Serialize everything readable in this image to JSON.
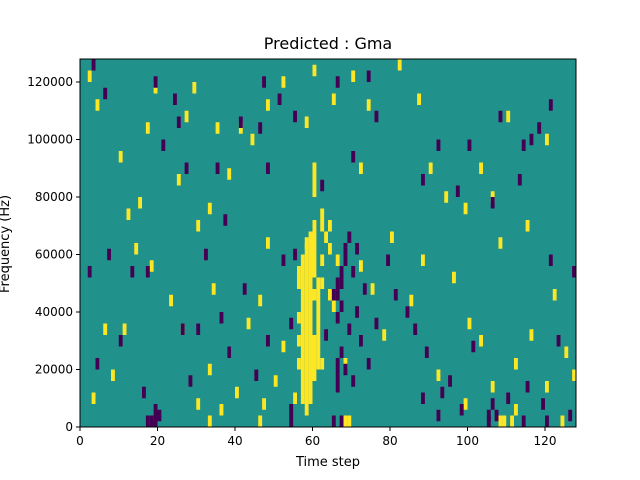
{
  "chart_data": {
    "type": "heatmap",
    "title": "Predicted : Gma",
    "xlabel": "Time step",
    "ylabel": "Frequency (Hz)",
    "xlim": [
      0,
      128
    ],
    "ylim": [
      0,
      128000
    ],
    "x_ticks": [
      0,
      20,
      40,
      60,
      80,
      100,
      120
    ],
    "y_ticks": [
      0,
      20000,
      40000,
      60000,
      80000,
      100000,
      120000
    ],
    "x_tick_labels": [
      "0",
      "20",
      "40",
      "60",
      "80",
      "100",
      "120"
    ],
    "y_tick_labels": [
      "0",
      "20000",
      "40000",
      "60000",
      "80000",
      "100000",
      "120000"
    ],
    "grid": false,
    "value_range": [
      -1,
      1
    ],
    "colormap": {
      "low": "#440154",
      "mid": "#21918c",
      "high": "#fde725"
    },
    "cell_size": [
      1,
      4000
    ],
    "cells_high": [
      [
        2,
        120000
      ],
      [
        4,
        110000
      ],
      [
        10,
        92000
      ],
      [
        12,
        72000
      ],
      [
        15,
        76000
      ],
      [
        17,
        102000
      ],
      [
        19,
        116000
      ],
      [
        25,
        84000
      ],
      [
        27,
        106000
      ],
      [
        29,
        116000
      ],
      [
        30,
        68000
      ],
      [
        33,
        74000
      ],
      [
        35,
        102000
      ],
      [
        38,
        86000
      ],
      [
        41,
        102000
      ],
      [
        44,
        98000
      ],
      [
        48,
        110000
      ],
      [
        52,
        118000
      ],
      [
        58,
        104000
      ],
      [
        60,
        122000
      ],
      [
        65,
        112000
      ],
      [
        70,
        120000
      ],
      [
        72,
        88000
      ],
      [
        74,
        110000
      ],
      [
        82,
        124000
      ],
      [
        87,
        112000
      ],
      [
        90,
        88000
      ],
      [
        94,
        78000
      ],
      [
        99,
        74000
      ],
      [
        103,
        88000
      ],
      [
        106,
        78000
      ],
      [
        110,
        106000
      ],
      [
        115,
        68000
      ],
      [
        120,
        98000
      ],
      [
        3,
        8000
      ],
      [
        4,
        20000
      ],
      [
        6,
        32000
      ],
      [
        8,
        16000
      ],
      [
        11,
        32000
      ],
      [
        14,
        60000
      ],
      [
        18,
        54000
      ],
      [
        23,
        42000
      ],
      [
        26,
        32000
      ],
      [
        30,
        6000
      ],
      [
        33,
        18000
      ],
      [
        34,
        46000
      ],
      [
        36,
        4000
      ],
      [
        38,
        24000
      ],
      [
        40,
        10000
      ],
      [
        43,
        34000
      ],
      [
        46,
        42000
      ],
      [
        48,
        62000
      ],
      [
        50,
        14000
      ],
      [
        52,
        26000
      ],
      [
        55,
        8000
      ],
      [
        58,
        62000
      ],
      [
        62,
        20000
      ],
      [
        65,
        40000
      ],
      [
        68,
        20000
      ],
      [
        72,
        54000
      ],
      [
        75,
        46000
      ],
      [
        78,
        30000
      ],
      [
        80,
        64000
      ],
      [
        85,
        42000
      ],
      [
        88,
        56000
      ],
      [
        92,
        16000
      ],
      [
        96,
        50000
      ],
      [
        100,
        34000
      ],
      [
        103,
        28000
      ],
      [
        106,
        12000
      ],
      [
        108,
        62000
      ],
      [
        112,
        20000
      ],
      [
        116,
        30000
      ],
      [
        120,
        12000
      ],
      [
        122,
        44000
      ],
      [
        125,
        24000
      ],
      [
        127,
        16000
      ],
      [
        60,
        64000
      ],
      [
        60,
        60000
      ],
      [
        60,
        56000
      ],
      [
        60,
        52000
      ],
      [
        61,
        48000
      ],
      [
        61,
        44000
      ],
      [
        61,
        40000
      ],
      [
        61,
        36000
      ],
      [
        61,
        32000
      ],
      [
        62,
        48000
      ],
      [
        62,
        56000
      ],
      [
        63,
        64000
      ],
      [
        64,
        44000
      ],
      [
        64,
        60000
      ],
      [
        66,
        56000
      ],
      [
        57,
        8000
      ],
      [
        57,
        12000
      ],
      [
        57,
        16000
      ],
      [
        57,
        20000
      ],
      [
        57,
        24000
      ],
      [
        57,
        28000
      ],
      [
        57,
        32000
      ],
      [
        57,
        36000
      ],
      [
        57,
        40000
      ],
      [
        57,
        44000
      ],
      [
        57,
        48000
      ],
      [
        57,
        52000
      ],
      [
        57,
        56000
      ],
      [
        58,
        4000
      ],
      [
        58,
        8000
      ],
      [
        58,
        12000
      ],
      [
        58,
        16000
      ],
      [
        58,
        20000
      ],
      [
        58,
        24000
      ],
      [
        58,
        28000
      ],
      [
        58,
        32000
      ],
      [
        58,
        36000
      ],
      [
        58,
        40000
      ],
      [
        58,
        44000
      ],
      [
        58,
        48000
      ],
      [
        58,
        52000
      ],
      [
        58,
        56000
      ],
      [
        58,
        60000
      ],
      [
        59,
        8000
      ],
      [
        59,
        12000
      ],
      [
        59,
        16000
      ],
      [
        59,
        20000
      ],
      [
        59,
        24000
      ],
      [
        59,
        28000
      ],
      [
        59,
        32000
      ],
      [
        59,
        36000
      ],
      [
        59,
        40000
      ],
      [
        59,
        44000
      ],
      [
        59,
        48000
      ],
      [
        59,
        52000
      ],
      [
        59,
        56000
      ],
      [
        59,
        60000
      ],
      [
        59,
        64000
      ],
      [
        60,
        16000
      ],
      [
        60,
        20000
      ],
      [
        60,
        24000
      ],
      [
        60,
        28000
      ],
      [
        60,
        44000
      ],
      [
        60,
        68000
      ],
      [
        61,
        20000
      ],
      [
        61,
        24000
      ],
      [
        61,
        28000
      ],
      [
        56,
        48000
      ],
      [
        56,
        52000
      ],
      [
        56,
        36000
      ],
      [
        56,
        28000
      ],
      [
        56,
        20000
      ],
      [
        60,
        84000
      ],
      [
        60,
        80000
      ],
      [
        60,
        88000
      ],
      [
        62,
        72000
      ],
      [
        62,
        68000
      ],
      [
        64,
        68000
      ],
      [
        68,
        0
      ],
      [
        69,
        0
      ],
      [
        108,
        0
      ],
      [
        109,
        0
      ],
      [
        111,
        0
      ],
      [
        112,
        4000
      ],
      [
        124,
        0
      ],
      [
        99,
        6000
      ],
      [
        46,
        0
      ],
      [
        47,
        6000
      ],
      [
        33,
        0
      ]
    ],
    "cells_low": [
      [
        3,
        124000
      ],
      [
        6,
        114000
      ],
      [
        19,
        118000
      ],
      [
        24,
        112000
      ],
      [
        25,
        104000
      ],
      [
        21,
        96000
      ],
      [
        27,
        88000
      ],
      [
        35,
        88000
      ],
      [
        37,
        70000
      ],
      [
        41,
        104000
      ],
      [
        46,
        102000
      ],
      [
        47,
        118000
      ],
      [
        48,
        88000
      ],
      [
        51,
        112000
      ],
      [
        55,
        106000
      ],
      [
        62,
        82000
      ],
      [
        66,
        118000
      ],
      [
        70,
        92000
      ],
      [
        74,
        120000
      ],
      [
        76,
        106000
      ],
      [
        88,
        84000
      ],
      [
        92,
        96000
      ],
      [
        97,
        80000
      ],
      [
        100,
        96000
      ],
      [
        106,
        76000
      ],
      [
        108,
        106000
      ],
      [
        113,
        84000
      ],
      [
        114,
        96000
      ],
      [
        116,
        98000
      ],
      [
        118,
        102000
      ],
      [
        121,
        110000
      ],
      [
        128,
        72000
      ],
      [
        2,
        52000
      ],
      [
        4,
        20000
      ],
      [
        7,
        58000
      ],
      [
        10,
        28000
      ],
      [
        13,
        52000
      ],
      [
        16,
        10000
      ],
      [
        17,
        52000
      ],
      [
        19,
        4000
      ],
      [
        20,
        2000
      ],
      [
        26,
        32000
      ],
      [
        28,
        14000
      ],
      [
        30,
        32000
      ],
      [
        32,
        58000
      ],
      [
        36,
        36000
      ],
      [
        38,
        24000
      ],
      [
        42,
        46000
      ],
      [
        45,
        16000
      ],
      [
        48,
        28000
      ],
      [
        52,
        56000
      ],
      [
        54,
        4000
      ],
      [
        54,
        34000
      ],
      [
        55,
        58000
      ],
      [
        63,
        30000
      ],
      [
        65,
        44000
      ],
      [
        66,
        12000
      ],
      [
        67,
        24000
      ],
      [
        67,
        48000
      ],
      [
        68,
        18000
      ],
      [
        69,
        32000
      ],
      [
        70,
        14000
      ],
      [
        71,
        38000
      ],
      [
        72,
        28000
      ],
      [
        73,
        46000
      ],
      [
        74,
        20000
      ],
      [
        76,
        34000
      ],
      [
        79,
        56000
      ],
      [
        81,
        44000
      ],
      [
        84,
        38000
      ],
      [
        86,
        32000
      ],
      [
        88,
        8000
      ],
      [
        89,
        24000
      ],
      [
        92,
        2000
      ],
      [
        93,
        10000
      ],
      [
        95,
        14000
      ],
      [
        98,
        4000
      ],
      [
        101,
        26000
      ],
      [
        105,
        0
      ],
      [
        107,
        2000
      ],
      [
        110,
        8000
      ],
      [
        115,
        12000
      ],
      [
        119,
        6000
      ],
      [
        121,
        56000
      ],
      [
        123,
        28000
      ],
      [
        127,
        52000
      ],
      [
        66,
        44000
      ],
      [
        66,
        48000
      ],
      [
        66,
        36000
      ],
      [
        67,
        40000
      ],
      [
        67,
        52000
      ],
      [
        68,
        56000
      ],
      [
        68,
        60000
      ],
      [
        69,
        64000
      ],
      [
        66,
        20000
      ],
      [
        66,
        16000
      ],
      [
        67,
        0
      ],
      [
        70,
        52000
      ],
      [
        71,
        60000
      ],
      [
        18,
        0
      ],
      [
        17,
        0
      ],
      [
        19,
        0
      ],
      [
        54,
        0
      ],
      [
        65,
        0
      ],
      [
        105,
        2000
      ],
      [
        106,
        6000
      ],
      [
        114,
        0
      ],
      [
        120,
        0
      ],
      [
        126,
        2000
      ]
    ]
  }
}
